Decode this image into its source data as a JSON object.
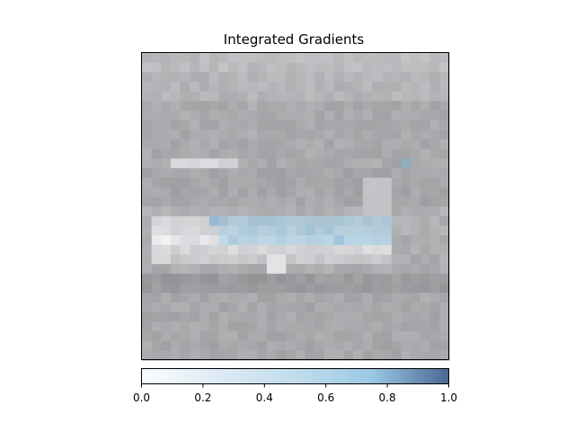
{
  "chart_data": {
    "type": "heatmap",
    "title": "Integrated Gradients",
    "xlabel": "",
    "ylabel": "",
    "grid": false,
    "image_grid": [
      32,
      32
    ],
    "colorbar": {
      "orientation": "horizontal",
      "placement": "bottom",
      "range": [
        0.0,
        1.0
      ],
      "ticks": [
        0.0,
        0.2,
        0.4,
        0.6,
        0.8,
        1.0
      ],
      "tick_labels": [
        "0.0",
        "0.2",
        "0.4",
        "0.6",
        "0.8",
        "1.0"
      ],
      "colormap": [
        "#f7fbff",
        "#c6dbef",
        "#9ecae1",
        "#6baed6",
        "#08306b"
      ]
    },
    "overlay_alpha": 0.55,
    "highlight_regions": [
      {
        "row_range": [
          17,
          19
        ],
        "col_range": [
          8,
          25
        ],
        "attribution": 0.6
      },
      {
        "row_range": [
          17,
          17
        ],
        "col_range": [
          7,
          7
        ],
        "attribution": 1.0
      },
      {
        "row_range": [
          18,
          18
        ],
        "col_range": [
          17,
          17
        ],
        "attribution": 0.85
      },
      {
        "row_range": [
          19,
          19
        ],
        "col_range": [
          20,
          20
        ],
        "attribution": 0.75
      },
      {
        "row_range": [
          11,
          11
        ],
        "col_range": [
          27,
          27
        ],
        "attribution": 0.7
      }
    ]
  }
}
